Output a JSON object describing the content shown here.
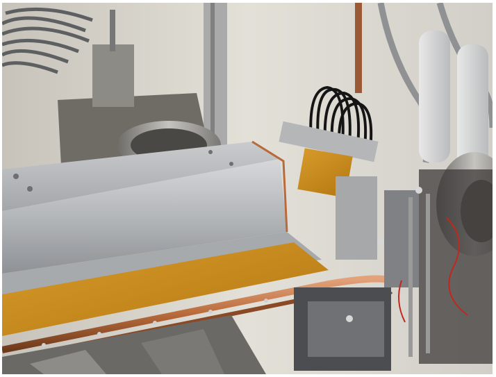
{
  "image": {
    "subject": "",
    "colors": {
      "wall": "#d9d6cf",
      "aluminum": "#b9bcbf",
      "aluminum_dark": "#8d9094",
      "kapton": "#c98a1c",
      "copper": "#b86a3a",
      "steel": "#9a9a98",
      "cable_black": "#161616",
      "shadow": "#3a3836"
    }
  }
}
